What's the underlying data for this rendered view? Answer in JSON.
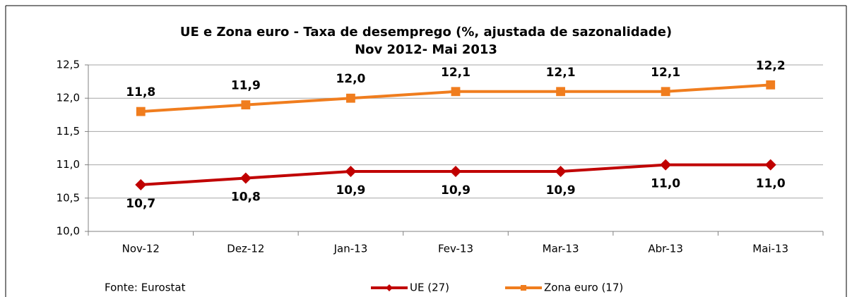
{
  "chart_data": {
    "type": "line",
    "title": "UE e Zona euro - Taxa de desemprego (%, ajustada de sazonalidade)",
    "subtitle": "Nov 2012- Mai 2013",
    "categories": [
      "Nov-12",
      "Dez-12",
      "Jan-13",
      "Fev-13",
      "Mar-13",
      "Abr-13",
      "Mai-13"
    ],
    "series": [
      {
        "name": "UE (27)",
        "color": "#c00000",
        "marker": "diamond",
        "values": [
          10.7,
          10.8,
          10.9,
          10.9,
          10.9,
          11.0,
          11.0
        ],
        "value_labels": [
          "10,7",
          "10,8",
          "10,9",
          "10,9",
          "10,9",
          "11,0",
          "11,0"
        ]
      },
      {
        "name": "Zona euro (17)",
        "color": "#f07d1e",
        "marker": "square",
        "values": [
          11.8,
          11.9,
          12.0,
          12.1,
          12.1,
          12.1,
          12.2
        ],
        "value_labels": [
          "11,8",
          "11,9",
          "12,0",
          "12,1",
          "12,1",
          "12,1",
          "12,2"
        ]
      }
    ],
    "ylim": [
      10.0,
      12.5
    ],
    "yticks": [
      {
        "value": 10.0,
        "label": "10,0"
      },
      {
        "value": 10.5,
        "label": "10,5"
      },
      {
        "value": 11.0,
        "label": "11,0"
      },
      {
        "value": 11.5,
        "label": "11,5"
      },
      {
        "value": 12.0,
        "label": "12,0"
      },
      {
        "value": 12.5,
        "label": "12,5"
      }
    ],
    "grid": true,
    "legend": "bottom",
    "source": "Fonte: Eurostat"
  }
}
